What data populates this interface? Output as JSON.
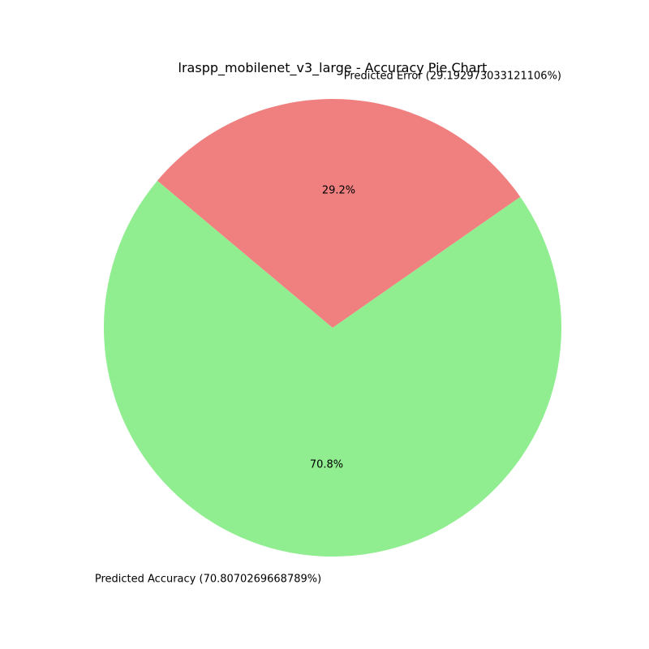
{
  "chart_data": {
    "type": "pie",
    "title": "lraspp_mobilenet_v3_large - Accuracy Pie Chart",
    "slices": [
      {
        "label": "Predicted  Accuracy (70.8070269668789%)",
        "value": 70.8070269668789,
        "pct_label": "70.8%",
        "color": "#90ee90"
      },
      {
        "label": "Predicted Error (29.192973033121106%)",
        "value": 29.192973033121106,
        "pct_label": "29.2%",
        "color": "#f08080"
      }
    ],
    "start_angle_deg": 140,
    "direction": "counterclockwise"
  }
}
